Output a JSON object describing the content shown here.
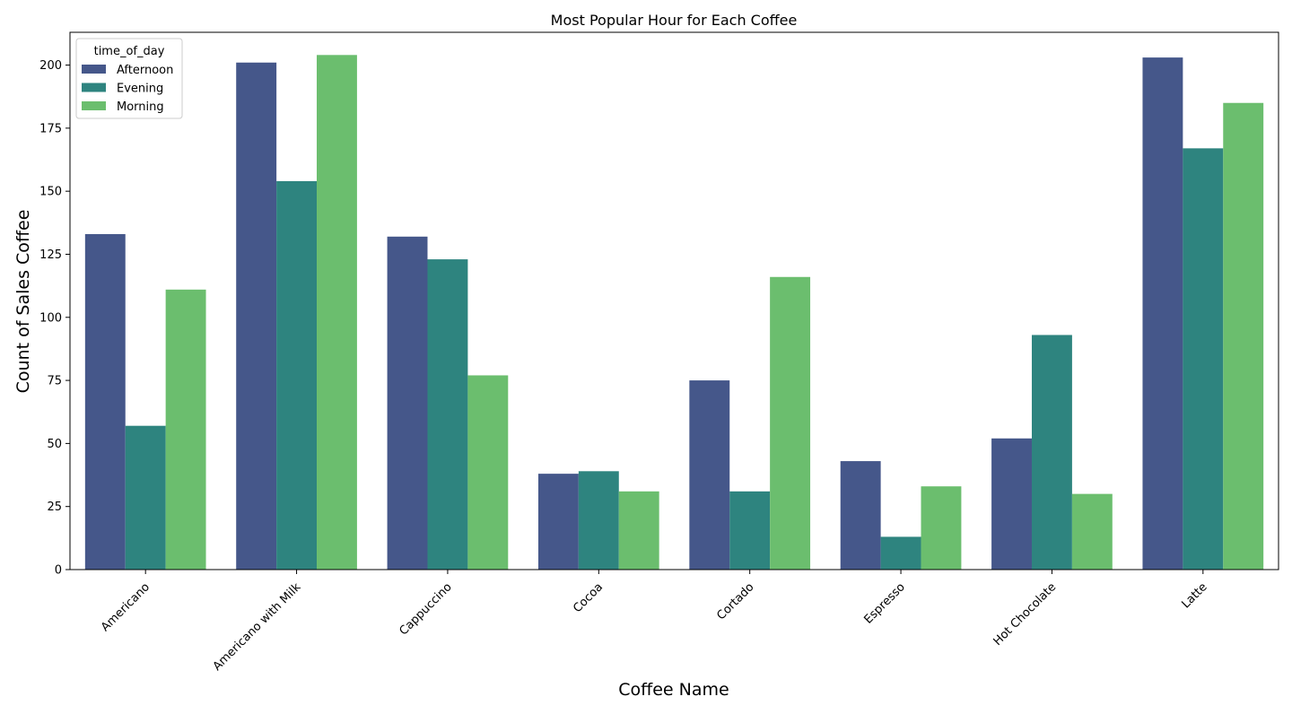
{
  "chart_data": {
    "type": "bar",
    "title": "Most Popular Hour for Each Coffee",
    "xlabel": "Coffee Name",
    "ylabel": "Count of Sales Coffee",
    "categories": [
      "Americano",
      "Americano with Milk",
      "Cappuccino",
      "Cocoa",
      "Cortado",
      "Espresso",
      "Hot Chocolate",
      "Latte"
    ],
    "series": [
      {
        "name": "Afternoon",
        "color": "#45578a",
        "values": [
          133,
          201,
          132,
          38,
          75,
          43,
          52,
          203
        ]
      },
      {
        "name": "Evening",
        "color": "#2e847f",
        "values": [
          57,
          154,
          123,
          39,
          31,
          13,
          93,
          167
        ]
      },
      {
        "name": "Morning",
        "color": "#6bbe6e",
        "values": [
          111,
          204,
          77,
          31,
          116,
          33,
          30,
          185
        ]
      }
    ],
    "ylim": [
      0,
      213
    ],
    "yticks": [
      0,
      25,
      50,
      75,
      100,
      125,
      150,
      175,
      200
    ],
    "legend": {
      "title": "time_of_day",
      "placement": "top-left"
    },
    "grid": false,
    "xtick_rotation": 45
  }
}
